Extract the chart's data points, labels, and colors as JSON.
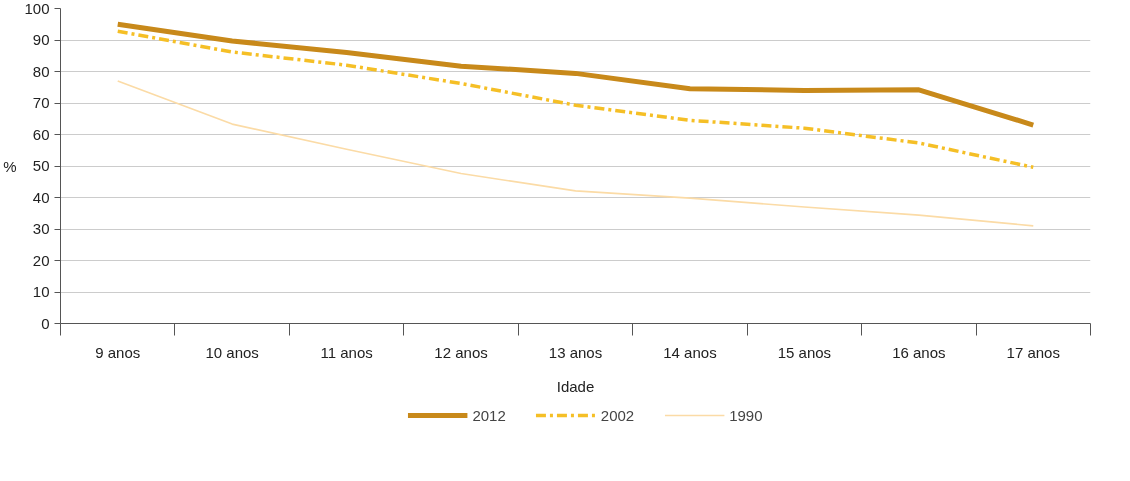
{
  "chart_data": {
    "type": "line",
    "xlabel": "Idade",
    "ylabel": "%",
    "categories": [
      "9 anos",
      "10 anos",
      "11 anos",
      "12 anos",
      "13 anos",
      "14 anos",
      "15 anos",
      "16 anos",
      "17 anos"
    ],
    "series": [
      {
        "name": "2012",
        "color": "#c8891a",
        "line_style": "solid",
        "values": [
          95,
          89.7,
          86,
          81.7,
          79.4,
          74.5,
          74,
          74.2,
          63
        ]
      },
      {
        "name": "2002",
        "color": "#f5bf26",
        "line_style": "dashdot",
        "values": [
          92.8,
          86.2,
          82,
          76.2,
          69.3,
          64.5,
          62,
          57.3,
          49.6
        ]
      },
      {
        "name": "1990",
        "color": "#fbdba6",
        "line_style": "solid",
        "values": [
          77,
          63.3,
          55.3,
          47.6,
          42.1,
          39.8,
          37,
          34.4,
          31
        ]
      }
    ],
    "ylim": [
      0,
      100
    ],
    "yticks": [
      0,
      10,
      20,
      30,
      40,
      50,
      60,
      70,
      80,
      90,
      100
    ],
    "grid": "y",
    "legend": "bottom",
    "marker": "none"
  }
}
